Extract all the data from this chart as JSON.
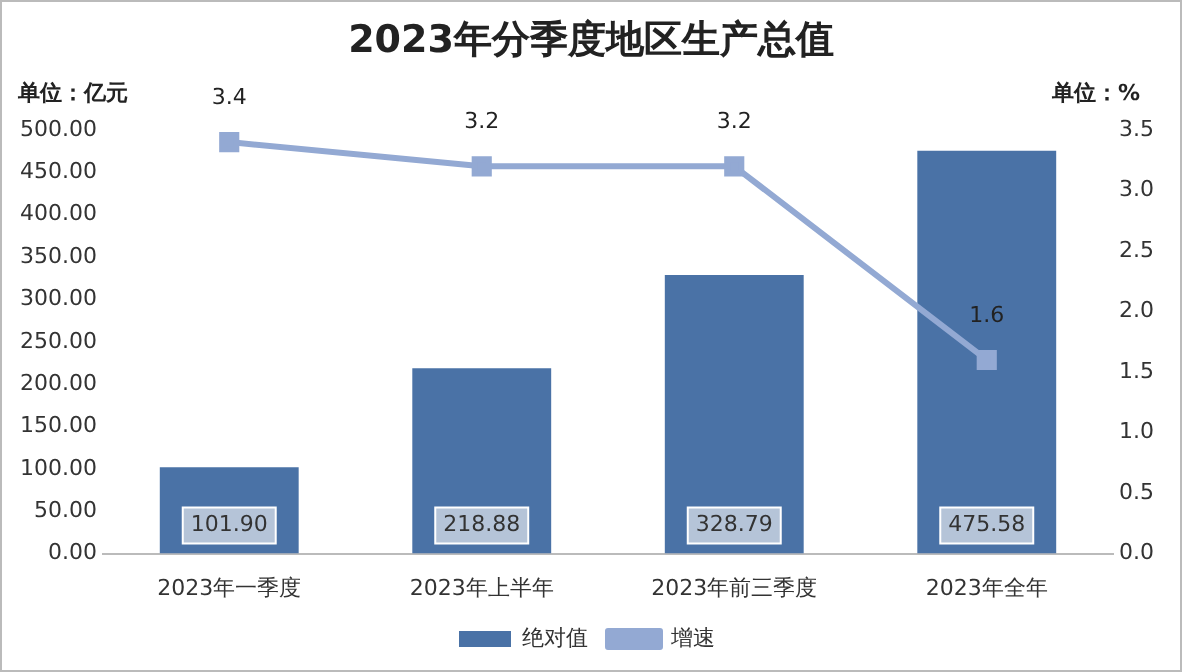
{
  "chart_data": {
    "type": "bar",
    "title": "2023年分季度地区生产总值",
    "ylabel": "单位：亿元",
    "y2label": "单位：%",
    "categories": [
      "2023年一季度",
      "2023年上半年",
      "2023年前三季度",
      "2023年全年"
    ],
    "series": [
      {
        "name": "绝对值",
        "color": "#4a72a6",
        "values": [
          101.9,
          218.88,
          328.79,
          475.58
        ],
        "value_labels": [
          "101.90",
          "218.88",
          "328.79",
          "475.58"
        ]
      },
      {
        "name": "增速",
        "type": "line",
        "axis": "y2",
        "color": "#93a9d3",
        "marker": "square",
        "values": [
          3.4,
          3.2,
          3.2,
          1.6
        ]
      }
    ],
    "ylim": [
      0,
      500
    ],
    "yticks": [
      {
        "value": 0,
        "label": "0.00"
      },
      {
        "value": 50,
        "label": "50.00"
      },
      {
        "value": 100,
        "label": "100.00"
      },
      {
        "value": 150,
        "label": "150.00"
      },
      {
        "value": 200,
        "label": "200.00"
      },
      {
        "value": 250,
        "label": "250.00"
      },
      {
        "value": 300,
        "label": "300.00"
      },
      {
        "value": 350,
        "label": "350.00"
      },
      {
        "value": 400,
        "label": "400.00"
      },
      {
        "value": 450,
        "label": "450.00"
      },
      {
        "value": 500,
        "label": "500.00"
      }
    ],
    "y2lim": [
      0,
      3.5
    ],
    "y2ticks": [
      {
        "value": 0,
        "label": "0.0"
      },
      {
        "value": 0.5,
        "label": "0.5"
      },
      {
        "value": 1,
        "label": "1.0"
      },
      {
        "value": 1.5,
        "label": "1.5"
      },
      {
        "value": 2,
        "label": "2.0"
      },
      {
        "value": 2.5,
        "label": "2.5"
      },
      {
        "value": 3,
        "label": "3.0"
      },
      {
        "value": 3.5,
        "label": "3.5"
      }
    ],
    "data_labels": true,
    "legend": "bottom",
    "grid": false
  }
}
